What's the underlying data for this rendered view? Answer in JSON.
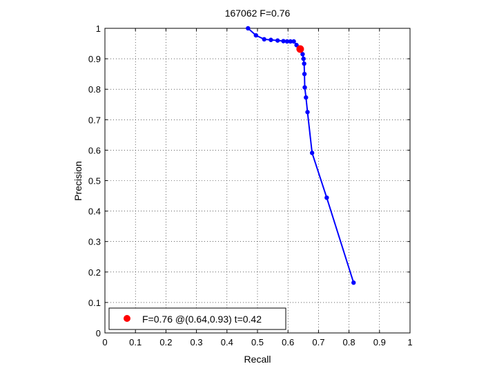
{
  "chart_data": {
    "type": "line",
    "title": "167062 F=0.76",
    "xlabel": "Recall",
    "ylabel": "Precision",
    "xlim": [
      0,
      1
    ],
    "ylim": [
      0,
      1
    ],
    "xticks": [
      0,
      0.1,
      0.2,
      0.3,
      0.4,
      0.5,
      0.6,
      0.7,
      0.8,
      0.9,
      1
    ],
    "yticks": [
      0,
      0.1,
      0.2,
      0.3,
      0.4,
      0.5,
      0.6,
      0.7,
      0.8,
      0.9,
      1
    ],
    "xtick_labels": [
      "0",
      "0.1",
      "0.2",
      "0.3",
      "0.4",
      "0.5",
      "0.6",
      "0.7",
      "0.8",
      "0.9",
      "1"
    ],
    "ytick_labels": [
      "0",
      "0.1",
      "0.2",
      "0.3",
      "0.4",
      "0.5",
      "0.6",
      "0.7",
      "0.8",
      "0.9",
      "1"
    ],
    "grid": true,
    "legend_position": "bottom-left",
    "series": [
      {
        "color": "#0000ff",
        "points": [
          [
            0.469,
            1.0
          ],
          [
            0.495,
            0.977
          ],
          [
            0.522,
            0.964
          ],
          [
            0.544,
            0.962
          ],
          [
            0.566,
            0.96
          ],
          [
            0.585,
            0.958
          ],
          [
            0.597,
            0.957
          ],
          [
            0.608,
            0.957
          ],
          [
            0.619,
            0.957
          ],
          [
            0.628,
            0.945
          ],
          [
            0.636,
            0.937
          ],
          [
            0.642,
            0.927
          ],
          [
            0.648,
            0.915
          ],
          [
            0.651,
            0.9
          ],
          [
            0.653,
            0.884
          ],
          [
            0.654,
            0.85
          ],
          [
            0.655,
            0.806
          ],
          [
            0.659,
            0.773
          ],
          [
            0.664,
            0.725
          ],
          [
            0.679,
            0.591
          ],
          [
            0.727,
            0.444
          ],
          [
            0.815,
            0.165
          ]
        ]
      }
    ],
    "highlight": {
      "color": "#ff0000",
      "point": [
        0.64,
        0.932
      ],
      "label": "F=0.76 @(0.64,0.93) t=0.42"
    }
  }
}
